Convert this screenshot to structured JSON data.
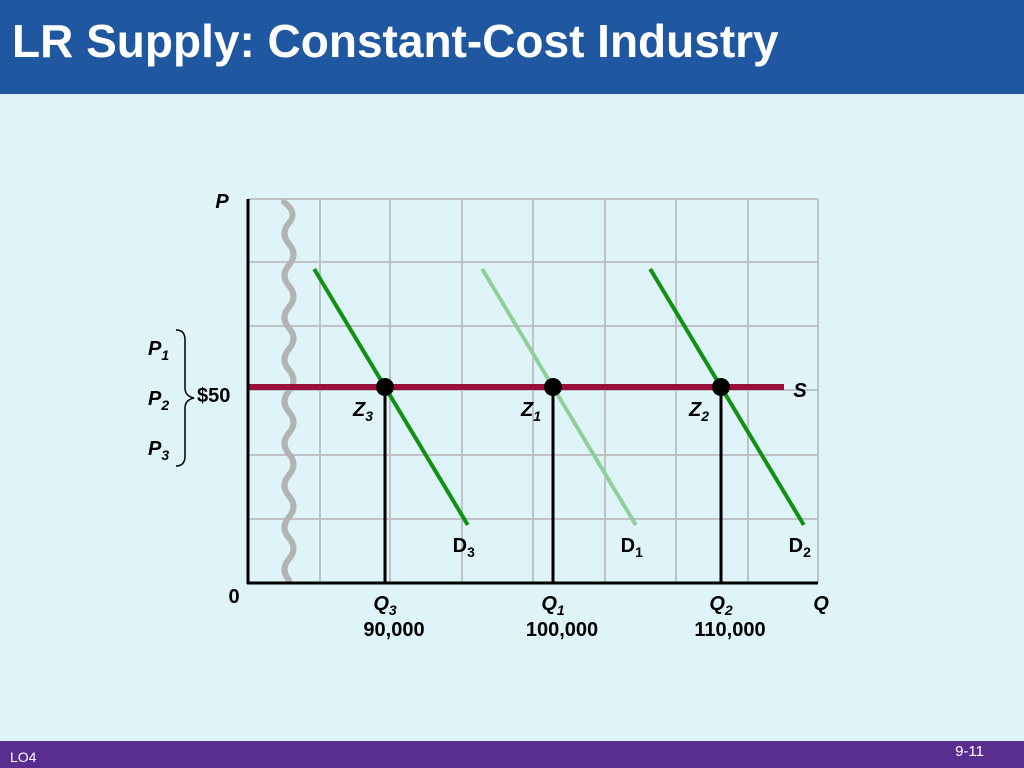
{
  "slide": {
    "title": "LR Supply: Constant-Cost Industry",
    "footer_left": "LO4",
    "page_number": "9-11"
  },
  "chart_data": {
    "type": "line",
    "ylabel": "P",
    "xlabel": "Q",
    "origin_label": "0",
    "grid": true,
    "price_labels": [
      {
        "main": "P",
        "sub": "1"
      },
      {
        "main": "P",
        "sub": "2"
      },
      {
        "main": "P",
        "sub": "3"
      }
    ],
    "price_value_label": "$50",
    "price": 50,
    "supply": {
      "name": "S",
      "price": 50
    },
    "demand_curves": [
      {
        "main": "D",
        "sub": "3",
        "quantity_at_price": 90000,
        "color": "#119111"
      },
      {
        "main": "D",
        "sub": "1",
        "quantity_at_price": 100000,
        "color": "#8fcf98"
      },
      {
        "main": "D",
        "sub": "2",
        "quantity_at_price": 110000,
        "color": "#119111"
      }
    ],
    "equilibria": [
      {
        "main": "Z",
        "sub": "3",
        "quantity": 90000,
        "price": 50,
        "q_main": "Q",
        "q_sub": "3",
        "q_value_label": "90,000"
      },
      {
        "main": "Z",
        "sub": "1",
        "quantity": 100000,
        "price": 50,
        "q_main": "Q",
        "q_sub": "1",
        "q_value_label": "100,000"
      },
      {
        "main": "Z",
        "sub": "2",
        "quantity": 110000,
        "price": 50,
        "q_main": "Q",
        "q_sub": "2",
        "q_value_label": "110,000"
      }
    ],
    "colors": {
      "supply": "#9a0f3c",
      "grid": "#bfc2c4",
      "axis": "#000000"
    }
  }
}
